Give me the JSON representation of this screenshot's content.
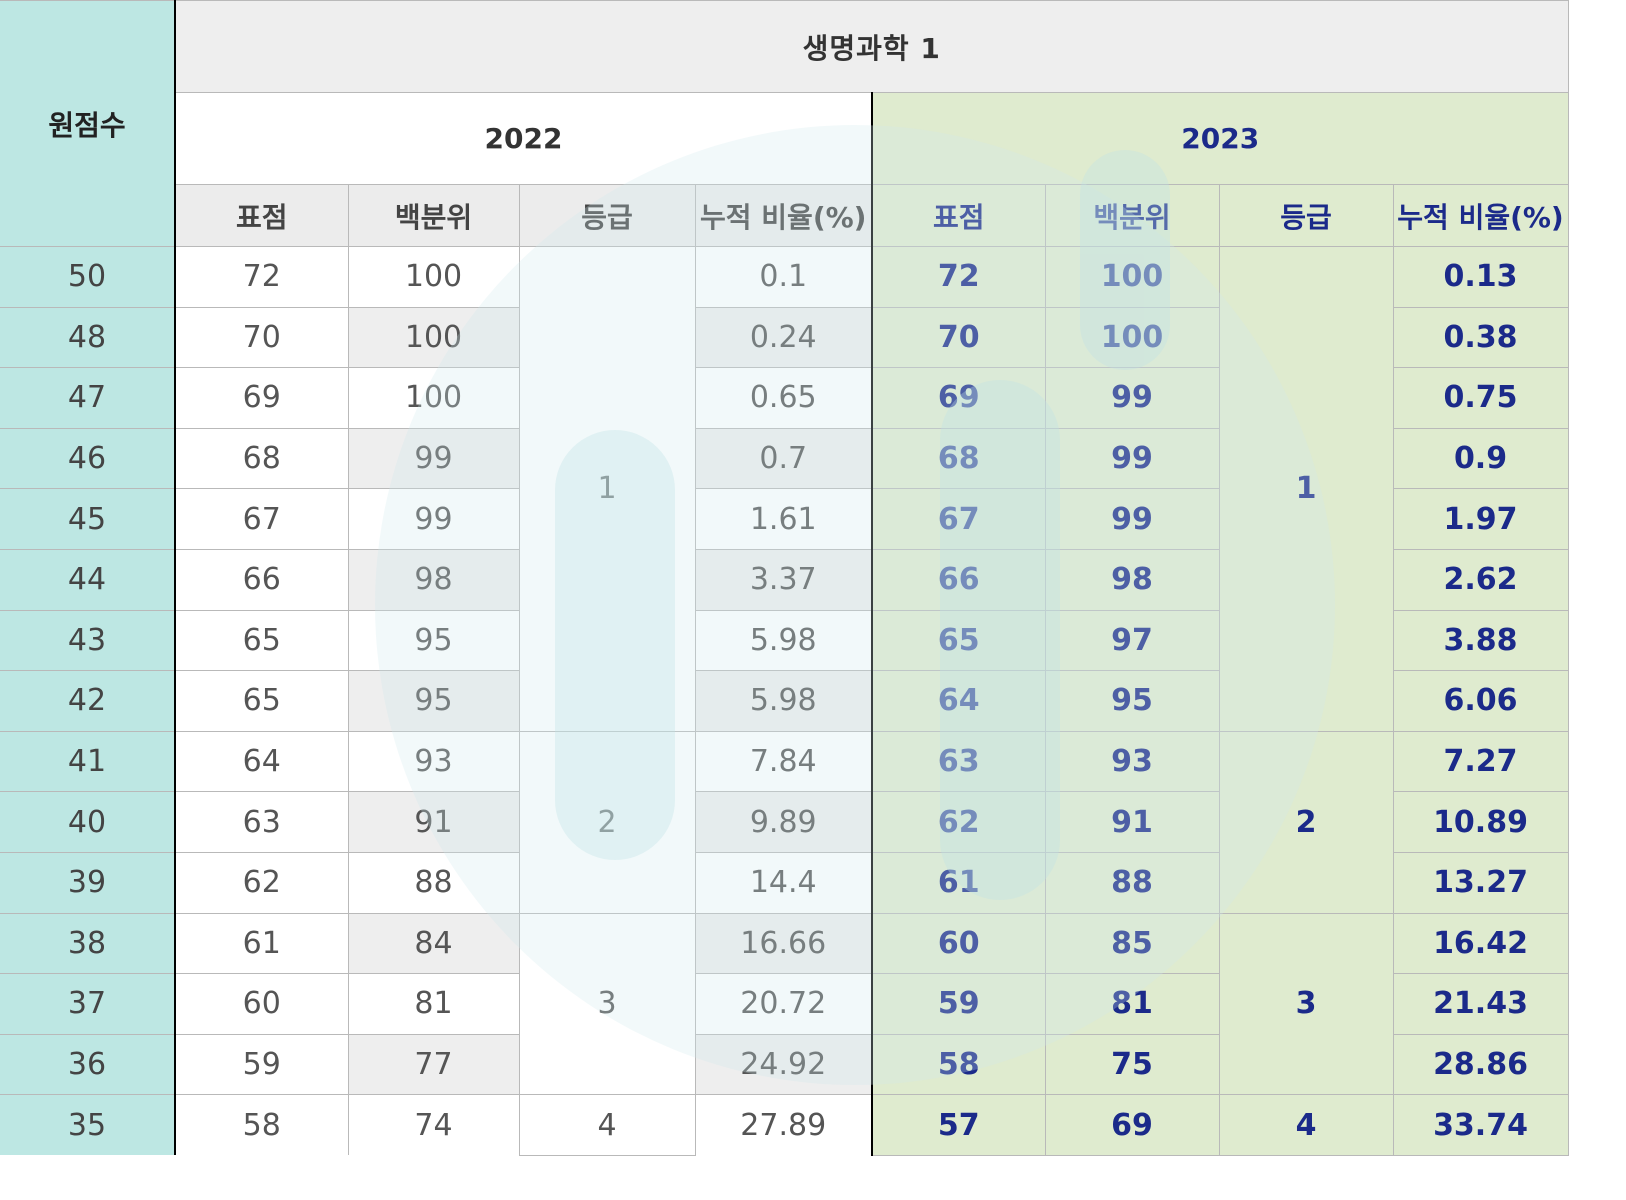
{
  "header": {
    "raw_score": "원점수",
    "subject": "생명과학 1",
    "year_2022": "2022",
    "year_2023": "2023",
    "columns": [
      "표점",
      "백분위",
      "등급",
      "누적 비율(%)"
    ]
  },
  "rows": [
    {
      "raw": "50",
      "s22": "72",
      "p22": "100",
      "c22": "0.1",
      "s23": "72",
      "p23": "100",
      "c23": "0.13"
    },
    {
      "raw": "48",
      "s22": "70",
      "p22": "100",
      "c22": "0.24",
      "s23": "70",
      "p23": "100",
      "c23": "0.38"
    },
    {
      "raw": "47",
      "s22": "69",
      "p22": "100",
      "c22": "0.65",
      "s23": "69",
      "p23": "99",
      "c23": "0.75"
    },
    {
      "raw": "46",
      "s22": "68",
      "p22": "99",
      "c22": "0.7",
      "s23": "68",
      "p23": "99",
      "c23": "0.9"
    },
    {
      "raw": "45",
      "s22": "67",
      "p22": "99",
      "c22": "1.61",
      "s23": "67",
      "p23": "99",
      "c23": "1.97"
    },
    {
      "raw": "44",
      "s22": "66",
      "p22": "98",
      "c22": "3.37",
      "s23": "66",
      "p23": "98",
      "c23": "2.62"
    },
    {
      "raw": "43",
      "s22": "65",
      "p22": "95",
      "c22": "5.98",
      "s23": "65",
      "p23": "97",
      "c23": "3.88"
    },
    {
      "raw": "42",
      "s22": "65",
      "p22": "95",
      "c22": "5.98",
      "s23": "64",
      "p23": "95",
      "c23": "6.06"
    },
    {
      "raw": "41",
      "s22": "64",
      "p22": "93",
      "c22": "7.84",
      "s23": "63",
      "p23": "93",
      "c23": "7.27"
    },
    {
      "raw": "40",
      "s22": "63",
      "p22": "91",
      "c22": "9.89",
      "s23": "62",
      "p23": "91",
      "c23": "10.89"
    },
    {
      "raw": "39",
      "s22": "62",
      "p22": "88",
      "c22": "14.4",
      "s23": "61",
      "p23": "88",
      "c23": "13.27"
    },
    {
      "raw": "38",
      "s22": "61",
      "p22": "84",
      "c22": "16.66",
      "s23": "60",
      "p23": "85",
      "c23": "16.42"
    },
    {
      "raw": "37",
      "s22": "60",
      "p22": "81",
      "c22": "20.72",
      "s23": "59",
      "p23": "81",
      "c23": "21.43"
    },
    {
      "raw": "36",
      "s22": "59",
      "p22": "77",
      "c22": "24.92",
      "s23": "58",
      "p23": "75",
      "c23": "28.86"
    },
    {
      "raw": "35",
      "s22": "58",
      "p22": "74",
      "c22": "27.89",
      "s23": "57",
      "p23": "69",
      "c23": "33.74"
    }
  ],
  "grades_2022": [
    {
      "grade": "1",
      "span": 8
    },
    {
      "grade": "2",
      "span": 3
    },
    {
      "grade": "3",
      "span": 3
    },
    {
      "grade": "4",
      "span": 1
    }
  ],
  "grades_2023": [
    {
      "grade": "1",
      "span": 8
    },
    {
      "grade": "2",
      "span": 3
    },
    {
      "grade": "3",
      "span": 3
    },
    {
      "grade": "4",
      "span": 1
    }
  ],
  "colors": {
    "raw_bg": "#bde7e3",
    "y2023_bg": "#dfebcf",
    "y2023_text": "#1b2a8a",
    "header_bg": "#eeeeee",
    "watermark": "#d3ecef"
  }
}
